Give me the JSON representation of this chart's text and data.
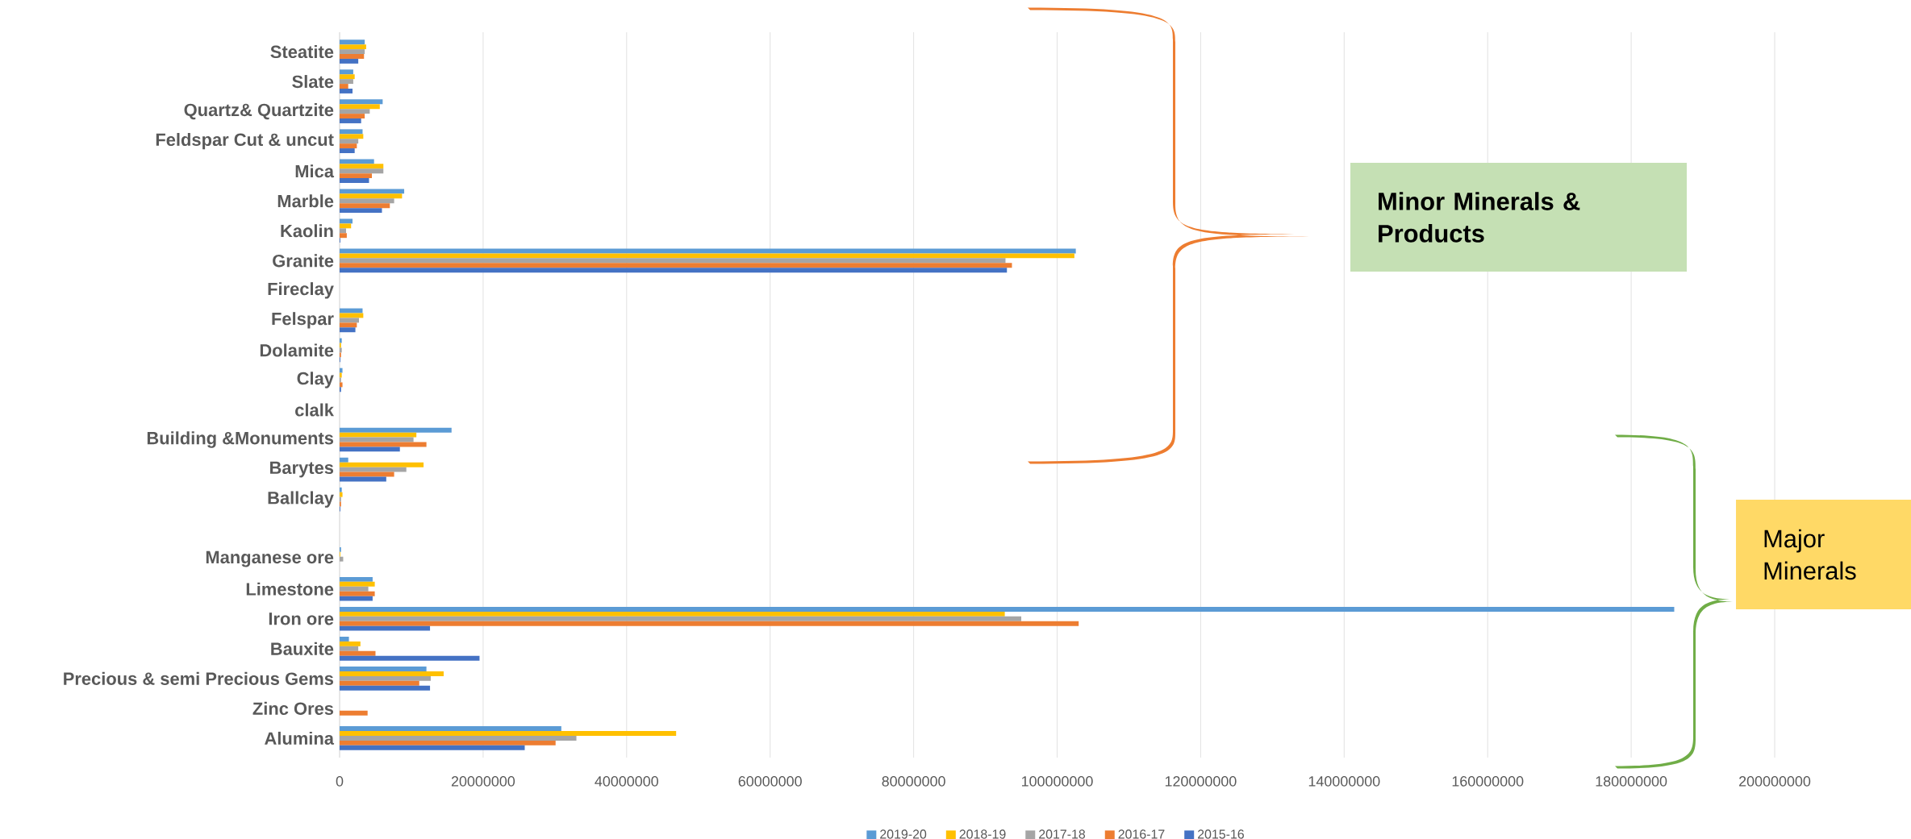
{
  "chart_data": {
    "type": "bar",
    "orientation": "horizontal",
    "categories": [
      "Steatite",
      "Slate",
      "Quartz& Quartzite",
      "Feldspar Cut & uncut",
      "Mica",
      "Marble",
      "Kaolin",
      "Granite",
      "Fireclay",
      "Felspar",
      "Dolamite",
      "Clay",
      "clalk",
      "Building &Monuments",
      "Barytes",
      "Ballclay",
      null,
      "Manganese ore",
      "Limestone",
      "Iron ore",
      "Bauxite",
      "Precious & semi Precious Gems",
      "Zinc Ores",
      "Alumina"
    ],
    "series": [
      {
        "name": "2019-20",
        "color": "#5b9bd5",
        "values": [
          3500000,
          1900000,
          6000000,
          3200000,
          4800000,
          9000000,
          1800000,
          102600000,
          null,
          3200000,
          300000,
          400000,
          null,
          15600000,
          1200000,
          300000,
          null,
          200000,
          4600000,
          186000000,
          1300000,
          12100000,
          null,
          30900000
        ]
      },
      {
        "name": "2018-19",
        "color": "#ffc000",
        "values": [
          3700000,
          2100000,
          5600000,
          3300000,
          6100000,
          8700000,
          1600000,
          102400000,
          null,
          3300000,
          200000,
          300000,
          null,
          10700000,
          11700000,
          400000,
          null,
          100000,
          4900000,
          92700000,
          2900000,
          14500000,
          null,
          46900000
        ]
      },
      {
        "name": "2017-18",
        "color": "#a5a5a5",
        "values": [
          3500000,
          1900000,
          4200000,
          2600000,
          6100000,
          7600000,
          900000,
          92800000,
          null,
          2700000,
          300000,
          200000,
          null,
          10300000,
          9300000,
          200000,
          null,
          500000,
          4000000,
          95000000,
          2600000,
          12700000,
          null,
          33000000
        ]
      },
      {
        "name": "2016-17",
        "color": "#ed7d31",
        "values": [
          3400000,
          1200000,
          3500000,
          2400000,
          4500000,
          7000000,
          1000000,
          93700000,
          null,
          2400000,
          200000,
          400000,
          null,
          12100000,
          7600000,
          200000,
          null,
          null,
          4900000,
          103000000,
          5000000,
          11100000,
          3900000,
          30100000
        ]
      },
      {
        "name": "2015-16",
        "color": "#4472c4",
        "values": [
          2600000,
          1800000,
          3000000,
          2100000,
          4100000,
          5900000,
          100000,
          93000000,
          null,
          2200000,
          100000,
          200000,
          null,
          8400000,
          6500000,
          100000,
          null,
          null,
          4600000,
          12600000,
          19500000,
          12600000,
          null,
          25800000
        ]
      }
    ],
    "xlim": [
      0,
      200000000
    ],
    "xticks": [
      0,
      20000000,
      40000000,
      60000000,
      80000000,
      100000000,
      120000000,
      140000000,
      160000000,
      180000000,
      200000000
    ],
    "grid": "x",
    "legend": "bottom",
    "annotations": [
      "Minor Minerals & Products",
      "Major Minerals"
    ]
  }
}
